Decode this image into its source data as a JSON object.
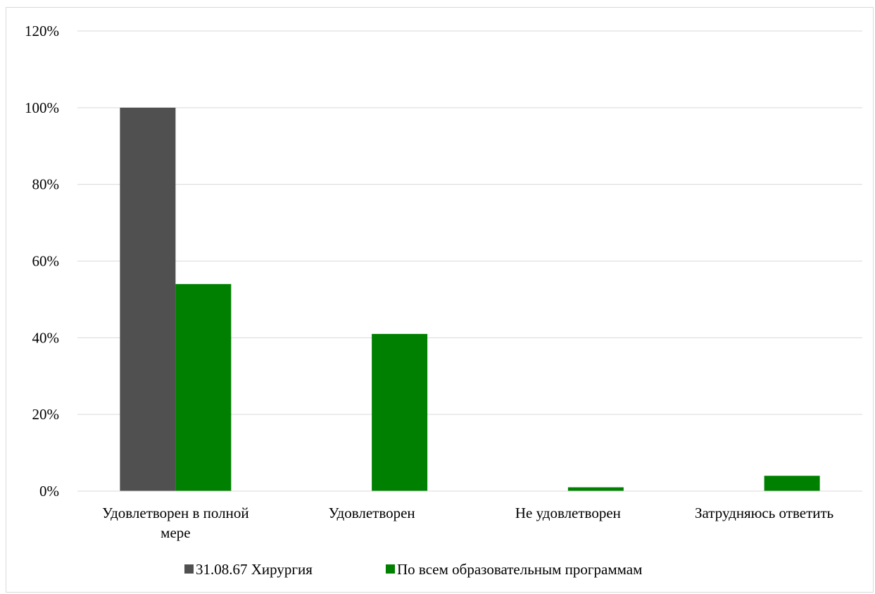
{
  "chart_data": {
    "type": "bar",
    "categories": [
      [
        "Удовлетворен в полной",
        "мере"
      ],
      [
        "Удовлетворен"
      ],
      [
        "Не удовлетворен"
      ],
      [
        "Затрудняюсь ответить"
      ]
    ],
    "series": [
      {
        "name": "31.08.67 Хирургия",
        "values": [
          100,
          0,
          0,
          0
        ],
        "color": "#505050"
      },
      {
        "name": "По всем образовательным программам",
        "values": [
          54,
          41,
          1,
          4
        ],
        "color": "#008000"
      }
    ],
    "ylim": [
      0,
      120
    ],
    "yticks": [
      "0%",
      "20%",
      "40%",
      "60%",
      "80%",
      "100%",
      "120%"
    ],
    "ytick_values": [
      0,
      20,
      40,
      60,
      80,
      100,
      120
    ],
    "grid": true,
    "gridline_color": "#d9d9d9",
    "legend_position": "bottom",
    "title": "",
    "xlabel": "",
    "ylabel": ""
  }
}
